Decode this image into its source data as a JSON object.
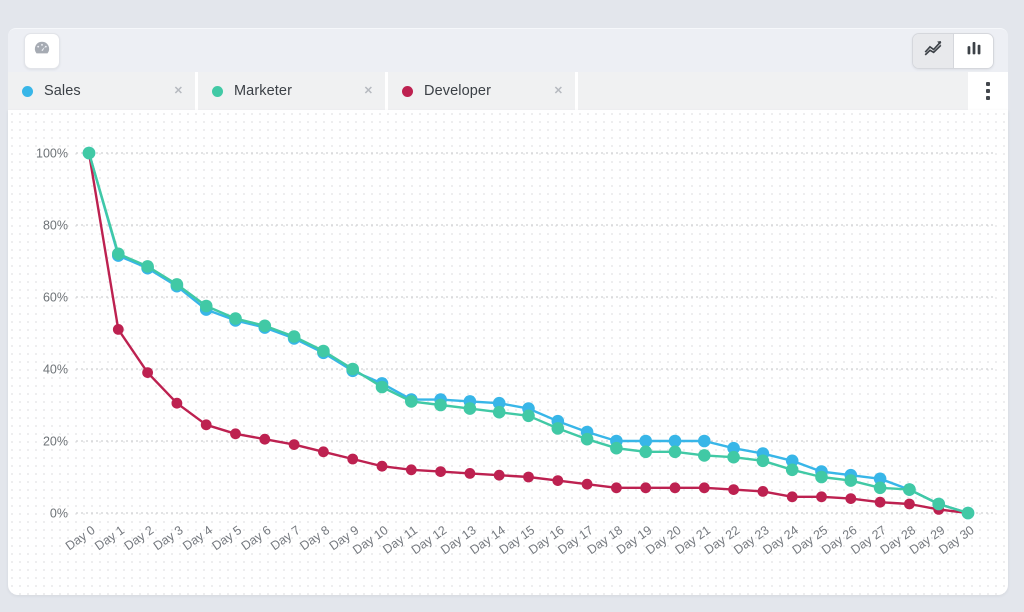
{
  "toolbar": {
    "dashboard_button_icon": "gauge-icon",
    "view_toggle": {
      "options": [
        {
          "icon": "line-chart-icon",
          "selected": true
        },
        {
          "icon": "bar-chart-icon",
          "selected": false
        }
      ]
    },
    "menu_icon": "kebab-menu-icon"
  },
  "filters": {
    "items": [
      {
        "label": "Sales",
        "color": "#38b6e8",
        "close_icon": "✕"
      },
      {
        "label": "Marketer",
        "color": "#41c9a5",
        "close_icon": "✕"
      },
      {
        "label": "Developer",
        "color": "#bd2150",
        "close_icon": "✕"
      }
    ]
  },
  "chart_data": {
    "type": "line",
    "x": [
      "Day 0",
      "Day 1",
      "Day 2",
      "Day 3",
      "Day 4",
      "Day 5",
      "Day 6",
      "Day 7",
      "Day 8",
      "Day 9",
      "Day 10",
      "Day 11",
      "Day 12",
      "Day 13",
      "Day 14",
      "Day 15",
      "Day 16",
      "Day 17",
      "Day 18",
      "Day 19",
      "Day 20",
      "Day 21",
      "Day 22",
      "Day 23",
      "Day 24",
      "Day 25",
      "Day 26",
      "Day 27",
      "Day 28",
      "Day 29",
      "Day 30"
    ],
    "series": [
      {
        "name": "Sales",
        "color": "#38b6e8",
        "values": [
          100,
          71.5,
          68,
          63,
          56.5,
          53.5,
          51.5,
          48.5,
          44.5,
          39.5,
          36,
          31.5,
          31.5,
          31,
          30.5,
          29,
          25.5,
          22.5,
          20,
          20,
          20,
          20,
          18,
          16.5,
          14.5,
          11.5,
          10.5,
          9.5,
          6.5,
          2.5,
          0
        ]
      },
      {
        "name": "Marketer",
        "color": "#41c9a5",
        "values": [
          100,
          72,
          68.5,
          63.5,
          57.5,
          54,
          52,
          49,
          45,
          40,
          35,
          31,
          30,
          29,
          28,
          27,
          23.5,
          20.5,
          18,
          17,
          17,
          16,
          15.5,
          14.5,
          12,
          10,
          9,
          7,
          6.5,
          2.5,
          0
        ]
      },
      {
        "name": "Developer",
        "color": "#bd2150",
        "values": [
          100,
          51,
          39,
          30.5,
          24.5,
          22,
          20.5,
          19,
          17,
          15,
          13,
          12,
          11.5,
          11,
          10.5,
          10,
          9,
          8,
          7,
          7,
          7,
          7,
          6.5,
          6,
          4.5,
          4.5,
          4,
          3,
          2.5,
          1,
          0
        ]
      }
    ],
    "ytick_values": [
      0,
      20,
      40,
      60,
      80,
      100
    ],
    "ytick_labels": [
      "0%",
      "20%",
      "40%",
      "60%",
      "80%",
      "100%"
    ],
    "ylim": [
      0,
      100
    ],
    "grid": "dotted-horizontal",
    "legend_position": "top-filter-chips",
    "title": "",
    "xlabel": "",
    "ylabel": ""
  }
}
